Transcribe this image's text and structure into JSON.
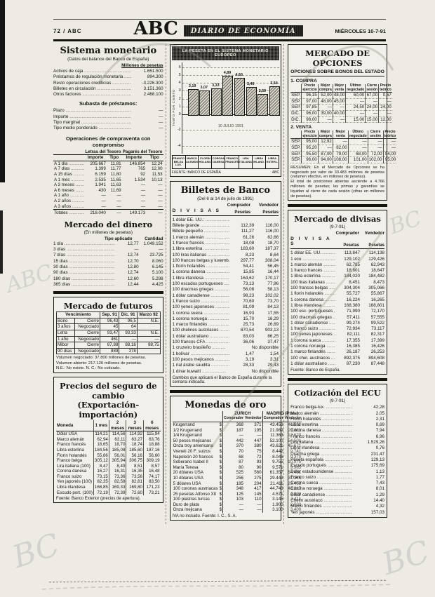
{
  "page": {
    "edition_label": "72 / ABC",
    "masthead": "ABC",
    "section_banner": "DIARIO DE ECONOMÍA",
    "date_label": "MIÉRCOLES 10-7-91"
  },
  "sistema_monetario": {
    "title": "Sistema monetario",
    "subtitle": "(Datos del balance del Banco de España)",
    "unit_header": "Millones de pesetas",
    "rows": [
      [
        "Activos de caja",
        "1.651.500"
      ],
      [
        "Préstamos de regulación monetaria",
        "894.300"
      ],
      [
        "Resto operaciones crediticias",
        "-3.226.300"
      ],
      [
        "Billetes en circulación",
        "3.151.360"
      ],
      [
        "Otros factores",
        "2.468.100"
      ]
    ],
    "subasta_title": "Subasta de préstamos:",
    "subasta_rows": [
      [
        "Plazo",
        "—"
      ],
      [
        "Importe",
        "—"
      ],
      [
        "Tipo marginal",
        "—"
      ],
      [
        "Tipo medio ponderado",
        "—"
      ]
    ]
  },
  "compraventa": {
    "title": "Operaciones de compraventa con compromiso",
    "group_headers": [
      "Letras del Tesoro",
      "Pagarés del Tesoro"
    ],
    "col_headers": [
      "Importe",
      "Tipo",
      "Importe",
      "Tipo"
    ],
    "rows": [
      [
        "A 1 día",
        "205.667",
        "11,81",
        "146.854",
        "12,24"
      ],
      [
        "A 7 días",
        "1.399",
        "11,77",
        "765",
        "12,00"
      ],
      [
        "A 15 días",
        "6.159",
        "11,80",
        "92",
        "11,53"
      ],
      [
        "A 1 mes",
        "2.535",
        "11,65",
        "1.534",
        "10,13"
      ],
      [
        "A 3 meses",
        "1.941",
        "11,63",
        "—",
        "—"
      ],
      [
        "A 6 meses",
        "430",
        "11,69",
        "—",
        "—"
      ],
      [
        "A 1 año",
        "—",
        "—",
        "—",
        "—"
      ],
      [
        "A 2 años",
        "—",
        "—",
        "—",
        "—"
      ],
      [
        "A 3 años",
        "—",
        "—",
        "—",
        "—"
      ],
      [
        "Totales",
        "218.040",
        "—",
        "149.173",
        "—"
      ]
    ]
  },
  "mercado_dinero": {
    "title": "Mercado del dinero",
    "subtitle": "(En millones de pesetas)",
    "col_headers": [
      "Tipo aplicado",
      "Cantidad"
    ],
    "rows": [
      [
        "1 día",
        "12,77",
        "1.049.152"
      ],
      [
        "3 días",
        "—",
        "—"
      ],
      [
        "7 días",
        "12,74",
        "23.725"
      ],
      [
        "15 días",
        "12,70",
        "8.060"
      ],
      [
        "30 días",
        "12,80",
        "6.145"
      ],
      [
        "90 días",
        "12,74",
        "5.100"
      ],
      [
        "180 días",
        "12,60",
        "5.298"
      ],
      [
        "365 días",
        "12,44",
        "4.425"
      ]
    ]
  },
  "futuros": {
    "title": "Mercado de futuros",
    "col_headers": [
      "Vencimiento",
      "Sep. 91",
      "Dic. 91",
      "Marzo 92"
    ],
    "rows": [
      [
        "Bono",
        "Cierre",
        "96,43",
        "96,5",
        "N.E."
      ],
      [
        "3 años",
        "Negociado",
        "45",
        "64",
        ""
      ],
      [
        "Letra",
        "Cierre",
        "93,47",
        "93,33",
        "N.E."
      ],
      [
        "1 año",
        "Negociado",
        "461",
        "—",
        "—"
      ],
      [
        "Mibor",
        "Cierre",
        "87,88",
        "88,16",
        "88,75"
      ],
      [
        "90 días",
        "Negociado",
        "889",
        "378",
        ""
      ]
    ],
    "notes": [
      "Volumen negociado: 37.800 millones de pesetas.",
      "Volumen abierto: 217.126 millones de pesetas.",
      "N.E.: No existe. N. C.: No cotizado."
    ]
  },
  "seguro_cambio": {
    "title": "Precios del seguro de cambio",
    "subtitle": "(Exportación-importación)",
    "col_headers": [
      "Moneda",
      "1 mes",
      "2 meses",
      "3 meses",
      "6 meses"
    ],
    "rows": [
      [
        "Dólar USA",
        "114,21",
        "114,56",
        "114,92",
        "115,94"
      ],
      [
        "Marco alemán",
        "62,94",
        "63,11",
        "63,27",
        "63,76"
      ],
      [
        "Franco francés",
        "18,65",
        "18,70",
        "18,74",
        "18,88"
      ],
      [
        "Libra esterlina",
        "184,56",
        "185,08",
        "185,60",
        "187,16"
      ],
      [
        "Florín holandés",
        "55,86",
        "56,01",
        "56,16",
        "56,60"
      ],
      [
        "Franco belga",
        "305,12",
        "305,94",
        "306,75",
        "309,19"
      ],
      [
        "Lira italiana (100)",
        "8,47",
        "8,49",
        "8,51",
        "8,57"
      ],
      [
        "Corona danesa",
        "16,27",
        "16,31",
        "16,35",
        "16,48"
      ],
      [
        "Franco suizo",
        "73,15",
        "73,36",
        "73,56",
        "74,17"
      ],
      [
        "Yen japonés (100)",
        "82,35",
        "82,58",
        "82,81",
        "83,50"
      ],
      [
        "Libra irlandesa",
        "168,85",
        "169,33",
        "169,80",
        "171,23"
      ],
      [
        "Escudo port. (100)",
        "72,19",
        "72,39",
        "72,60",
        "73,21"
      ]
    ],
    "footer": "Fuente: Banco Exterior (precios de apertura)."
  },
  "chart_data": {
    "type": "bar",
    "title": "LA PESETA EN EL SISTEMA MONETARIO EUROPEO",
    "ylabel": "TANTO POR CIENTO",
    "date_label": "10 JULIO 1991",
    "categories": [
      "FRANCO BELGA LUX.",
      "MARCO ALEMÁN",
      "FLORÍN HOLAND.",
      "CORONA DANESA",
      "FRANCO FRANCÉS",
      "LIRA ITALIANA",
      "LIBRA IRLAND.",
      "LIBRA ESTERL."
    ],
    "values": [
      3.19,
      3.07,
      3.33,
      4.89,
      4.6,
      3.46,
      2.59,
      3.54
    ],
    "value_labels": [
      "3,19",
      "3,07",
      "3,33",
      "4,89",
      "4,60",
      "3,46",
      "2,59",
      "3,54"
    ],
    "ylim": [
      -5,
      6.6
    ],
    "yticks": [
      6,
      5,
      4,
      3,
      2,
      1,
      0,
      -2,
      -4
    ],
    "grid": true,
    "legend": "none",
    "source": "FUENTE: BANCO DE ESPAÑA",
    "credit": "ABC"
  },
  "billetes": {
    "title": "Billetes de Banco",
    "subtitle": "(Del 6 al 14 de julio de 1991)",
    "col_headers": [
      "Comprador",
      "Vendedor"
    ],
    "unit_headers": [
      "Pesetas",
      "Pesetas"
    ],
    "divisas_label": "D I V I S A S",
    "rows": [
      [
        "1 dólar EE. UU.:",
        "",
        ""
      ],
      [
        "Billete grande",
        "112,39",
        "116,00"
      ],
      [
        "Billete pequeño",
        "111,27",
        "116,00"
      ],
      [
        "1 marco alemán",
        "61,26",
        "62,66"
      ],
      [
        "1 franco francés",
        "18,08",
        "18,70"
      ],
      [
        "1 libra esterlina",
        "183,60",
        "187,37"
      ],
      [
        "100 liras italianas",
        "8,23",
        "8,64"
      ],
      [
        "100 francos belgas y luxemb.",
        "297,77",
        "308,04"
      ],
      [
        "1 florín holandés",
        "54,41",
        "56,45"
      ],
      [
        "1 corona danesa",
        "15,85",
        "16,44"
      ],
      [
        "1 libra irlandesa",
        "164,62",
        "170,17"
      ],
      [
        "100 escudos portugueses",
        "73,13",
        "77,96"
      ],
      [
        "100 dracmas griegas",
        "56,08",
        "58,13"
      ],
      [
        "1 dólar canadiense",
        "98,23",
        "102,02"
      ],
      [
        "1 franco suizo",
        "70,60",
        "73,70"
      ],
      [
        "100 yenes japoneses",
        "81,09",
        "84,13"
      ],
      [
        "1 corona sueca",
        "16,93",
        "17,55"
      ],
      [
        "1 corona noruega",
        "15,70",
        "16,29"
      ],
      [
        "1 marco finlandés",
        "25,73",
        "26,69"
      ],
      [
        "100 chelines austriacos",
        "870,54",
        "903,13"
      ],
      [
        "1 dólar australiano",
        "83,03",
        "86,25"
      ],
      [
        "100 francos CFA",
        "36,06",
        "37,47"
      ],
      [
        "1 cruzeiro brasileño",
        "",
        "No disponible"
      ],
      [
        "1 bolívar",
        "1,47",
        "1,54"
      ],
      [
        "100 pesos mejicanos",
        "3,19",
        "3,31"
      ],
      [
        "1 rial árabe saudita",
        "28,33",
        "29,43"
      ],
      [
        "1 dinar kuwaití",
        "",
        "No disponible"
      ]
    ],
    "footer": "Cambios que aplicará el Banco de España durante la semana indicada."
  },
  "monedas_oro": {
    "title": "Monedas de oro",
    "group_headers": [
      "ZURICH",
      "MADRID (Ptas.)"
    ],
    "col_headers": [
      "Comprador",
      "Vendedor",
      "Comprador",
      "Vendedor"
    ],
    "rows": [
      [
        "Krugerrand",
        "$",
        "368",
        "371",
        "43.453",
        "44.552"
      ],
      [
        "1/2 Krugerrand",
        "$",
        "187",
        "195",
        "21.989",
        "23.611"
      ],
      [
        "1/4 Krugerrand",
        "$",
        "—",
        "—",
        "11.363",
        "12.670"
      ],
      [
        "50 pesos mejicanos",
        "$",
        "442",
        "447",
        "52.100",
        "54.501"
      ],
      [
        "Onza troy americana",
        "$",
        "370",
        "380",
        "43.621",
        "45.671"
      ],
      [
        "Vreneli 20 F. suizos",
        "$",
        "70",
        "75",
        "8.442",
        "9.741"
      ],
      [
        "Napoleón 20 francos",
        "$",
        "68",
        "72",
        "8.046",
        "9.370"
      ],
      [
        "Soberano Isabel II",
        "$",
        "87",
        "93",
        "9.755",
        "10.975"
      ],
      [
        "María Teresa",
        "$",
        "80",
        "90",
        "9.571",
        "9.985"
      ],
      [
        "20 dólares USA",
        "$",
        "525",
        "560",
        "61.357",
        "64.481"
      ],
      [
        "10 dólares USA",
        "$",
        "256",
        "275",
        "29.443",
        "31.346"
      ],
      [
        "5 dólares USA",
        "$",
        "185",
        "204",
        "21.411",
        "23.452"
      ],
      [
        "100 coronas austriacas",
        "$",
        "348",
        "417",
        "44.743",
        "48.217"
      ],
      [
        "25 pesetas Alfonso XII",
        "$",
        "125",
        "145",
        "4.571",
        "4.928"
      ],
      [
        "100 piastras turcas",
        "$",
        "103",
        "110",
        "3.145",
        "3.411"
      ],
      [
        "Duro de plata",
        "$",
        "—",
        "—",
        "1.900",
        "2.003"
      ],
      [
        "Onza mejicana",
        "$",
        "—",
        "—",
        "3.100",
        "3.400"
      ]
    ],
    "footer": "IVA no incluido. Fuente: I. C., S. A."
  },
  "opciones": {
    "title": "MERCADO DE OPCIONES",
    "subtitle": "OPCIONES SOBRE BONOS DEL ESTADO",
    "compra_label": "1. COMPRA",
    "venta_label": "2. VENTA",
    "col_headers": [
      "",
      "Precio ejercicio",
      "Mejor compra",
      "Mejor venta",
      "Último negociado",
      "Cierre sesión",
      "Precio teórico"
    ],
    "compra_rows": [
      [
        "SEP.",
        "96,15",
        "52,00",
        "48,00",
        "60,00",
        "67,00",
        "0,67"
      ],
      [
        "SEP.",
        "97,00",
        "48,00",
        "45,00",
        "—",
        "—",
        "—"
      ],
      [
        "SEP.",
        "97,85",
        "—",
        "—",
        "24,50",
        "24,00",
        "24,00"
      ],
      [
        "DIC.",
        "96,00",
        "39,00",
        "40,00",
        "—",
        "—",
        "—"
      ],
      [
        "DIC.",
        "98,00",
        "—",
        "—",
        "15,00",
        "15,00",
        "12,00"
      ]
    ],
    "venta_rows": [
      [
        "SEP.",
        "95,00",
        "12,92",
        "—",
        "—",
        "—",
        "—"
      ],
      [
        "SEP.",
        "95,20",
        "—",
        "82,00",
        "—",
        "—",
        "—"
      ],
      [
        "SEP.",
        "95,50",
        "87,00",
        "79,00",
        "68,00",
        "72,00",
        "54,00"
      ],
      [
        "SEP.",
        "96,00",
        "94,00",
        "108,00",
        "101,00",
        "102,00",
        "95,00"
      ]
    ],
    "resumen": [
      "RESUMEN: En el Mercado de Opciones se ha negociado por valor de 33.483 millones de pesetas (volumen efectivo, en millones de pesetas).",
      "El total de posiciones abiertas asciende a 4.766 millones de pesetas; las primas y garantías se liquidan al cierre de cada sesión (cifras en millones de pesetas)."
    ]
  },
  "divisas": {
    "title": "Mercado de divisas",
    "date": "(9-7-91)",
    "col_headers": [
      "Comprador",
      "Vendedor"
    ],
    "unit_headers": [
      "Pesetas",
      "Pesetas"
    ],
    "divisas_label": "D I V I S A S",
    "rows": [
      [
        "1 dólar EE. UU.",
        "113,847",
        "114,138"
      ],
      [
        "1 ecu",
        "129,102",
        "129,426"
      ],
      [
        "1 marco alemán",
        "62,785",
        "62,943"
      ],
      [
        "1 franco francés",
        "18,601",
        "18,647"
      ],
      [
        "1 libra esterlina",
        "184,020",
        "184,482"
      ],
      [
        "100 liras italianas",
        "8,451",
        "8,473"
      ],
      [
        "100 francos belgas",
        "304,304",
        "305,066"
      ],
      [
        "1 florín holandés",
        "55,727",
        "55,867"
      ],
      [
        "1 corona danesa",
        "16,224",
        "16,265"
      ],
      [
        "1 libra irlandesa",
        "168,380",
        "168,801"
      ],
      [
        "100 esc. portugueses",
        "71,990",
        "72,170"
      ],
      [
        "100 dracmas griegas",
        "57,411",
        "57,555"
      ],
      [
        "1 dólar canadiense",
        "99,274",
        "99,522"
      ],
      [
        "1 franco suizo",
        "72,934",
        "73,117"
      ],
      [
        "100 yenes japoneses",
        "82,111",
        "82,317"
      ],
      [
        "1 corona sueca",
        "17,355",
        "17,399"
      ],
      [
        "1 corona noruega",
        "16,385",
        "16,426"
      ],
      [
        "1 marco finlandés",
        "26,187",
        "26,253"
      ],
      [
        "100 chel. austriacos",
        "892,375",
        "894,608"
      ],
      [
        "1 dólar australiano",
        "87,230",
        "87,448"
      ]
    ],
    "footer": "Fuente: Banco de España."
  },
  "ecu": {
    "title": "Cotización del ECU",
    "date": "(9-7-91)",
    "rows": [
      [
        "Franco belga-lux.",
        "42,28"
      ],
      [
        "Marco alemán",
        "2,05"
      ],
      [
        "Florín holandés",
        "2,31"
      ],
      [
        "Libra esterlina",
        "0,69"
      ],
      [
        "Corona danesa",
        "7,94"
      ],
      [
        "Franco francés",
        "6,96"
      ],
      [
        "Lira italiana",
        "1.529,26"
      ],
      [
        "Libra irlandesa",
        "0,76"
      ],
      [
        "Dracma griega",
        "231,47"
      ],
      [
        "Peseta española",
        "129,13"
      ],
      [
        "Escudo portugués",
        "175,69"
      ],
      [
        "Dólar estadounidense",
        "1,13"
      ],
      [
        "Franco suizo",
        "1,77"
      ],
      [
        "Corona sueca",
        "7,43"
      ],
      [
        "Corona noruega",
        "8,01"
      ],
      [
        "Dólar canadiense",
        "1,29"
      ],
      [
        "Chelín austriaco",
        "14,40"
      ],
      [
        "Marco finlandés",
        "4,32"
      ],
      [
        "Yen japonés",
        "157,03"
      ]
    ]
  }
}
